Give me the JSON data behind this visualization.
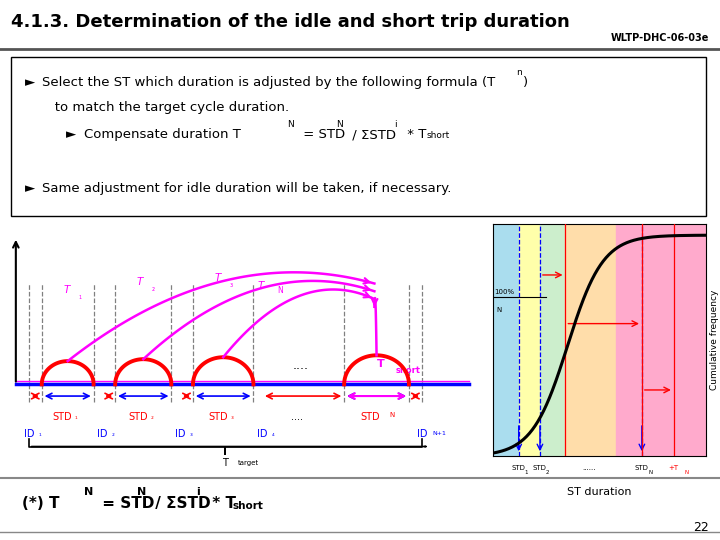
{
  "title": "4.1.3. Determination of the idle and short trip duration",
  "title_right": "WLTP-DHC-06-03e",
  "slide_number": "22",
  "bg_color": "#ffffff",
  "title_color": "#000000",
  "header_line_color": "#888888",
  "bullet_arrow": "►",
  "bullet1a": "Select the ST which duration is adjusted by the following formula (T",
  "bullet1b": "n",
  "bullet1c": ")",
  "bullet1d": "   to match the target cycle duration.",
  "bullet2_pre": "Compensate duration T",
  "bullet2_N1": "N",
  "bullet2_mid": " = STD",
  "bullet2_N2": "N",
  "bullet2_div": " / ΣSTD",
  "bullet2_i": "i",
  "bullet2_times": " * T",
  "bullet2_short": "short",
  "bullet3": "Same adjustment for idle duration will be taken, if necessary.",
  "formula_pre": "(*) T",
  "formula_N1": "N",
  "formula_mid": " = STD",
  "formula_N2": "N",
  "formula_div": " / ΣSTD",
  "formula_i": "i",
  "formula_times": " * T",
  "formula_short": "short",
  "pink_color": "#ffaacc",
  "orange_color": "#ffcc99",
  "yellow_color": "#ffffaa",
  "green_color": "#ccffcc",
  "cyan_color": "#aaddff"
}
